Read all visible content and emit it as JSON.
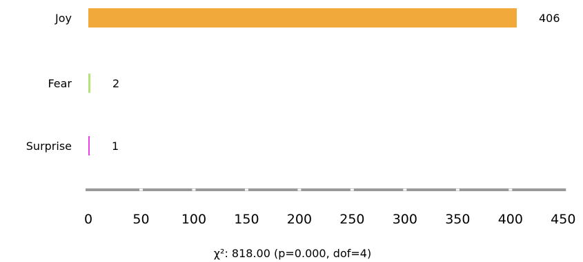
{
  "chart_data": {
    "type": "bar",
    "orientation": "horizontal",
    "categories": [
      "Joy",
      "Fear",
      "Surprise"
    ],
    "values": [
      406,
      2,
      1
    ],
    "colors": [
      "#f2a93b",
      "#b7e27a",
      "#ee3ee8"
    ],
    "value_labels": [
      "406",
      "2",
      "1"
    ],
    "xlim": [
      0,
      450
    ],
    "xticks": [
      "0",
      "50",
      "100",
      "150",
      "200",
      "250",
      "300",
      "350",
      "400",
      "450"
    ],
    "axis_color": "#999999",
    "footer": "χ²: 818.00 (p=0.000, dof=4)"
  }
}
